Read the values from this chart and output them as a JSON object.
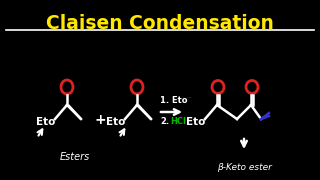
{
  "title": "Claisen Condensation",
  "title_color": "#FFE800",
  "bg_color": "#000000",
  "white": "#FFFFFF",
  "oxygen_color": "#DD2222",
  "hcl_color": "#00BB00",
  "blue_color": "#3333CC",
  "label_esters": "Esters",
  "label_product": "β-Keto ester",
  "reagent1": "1. Eto",
  "reagent2": "2.",
  "reagent2b": "HCl"
}
